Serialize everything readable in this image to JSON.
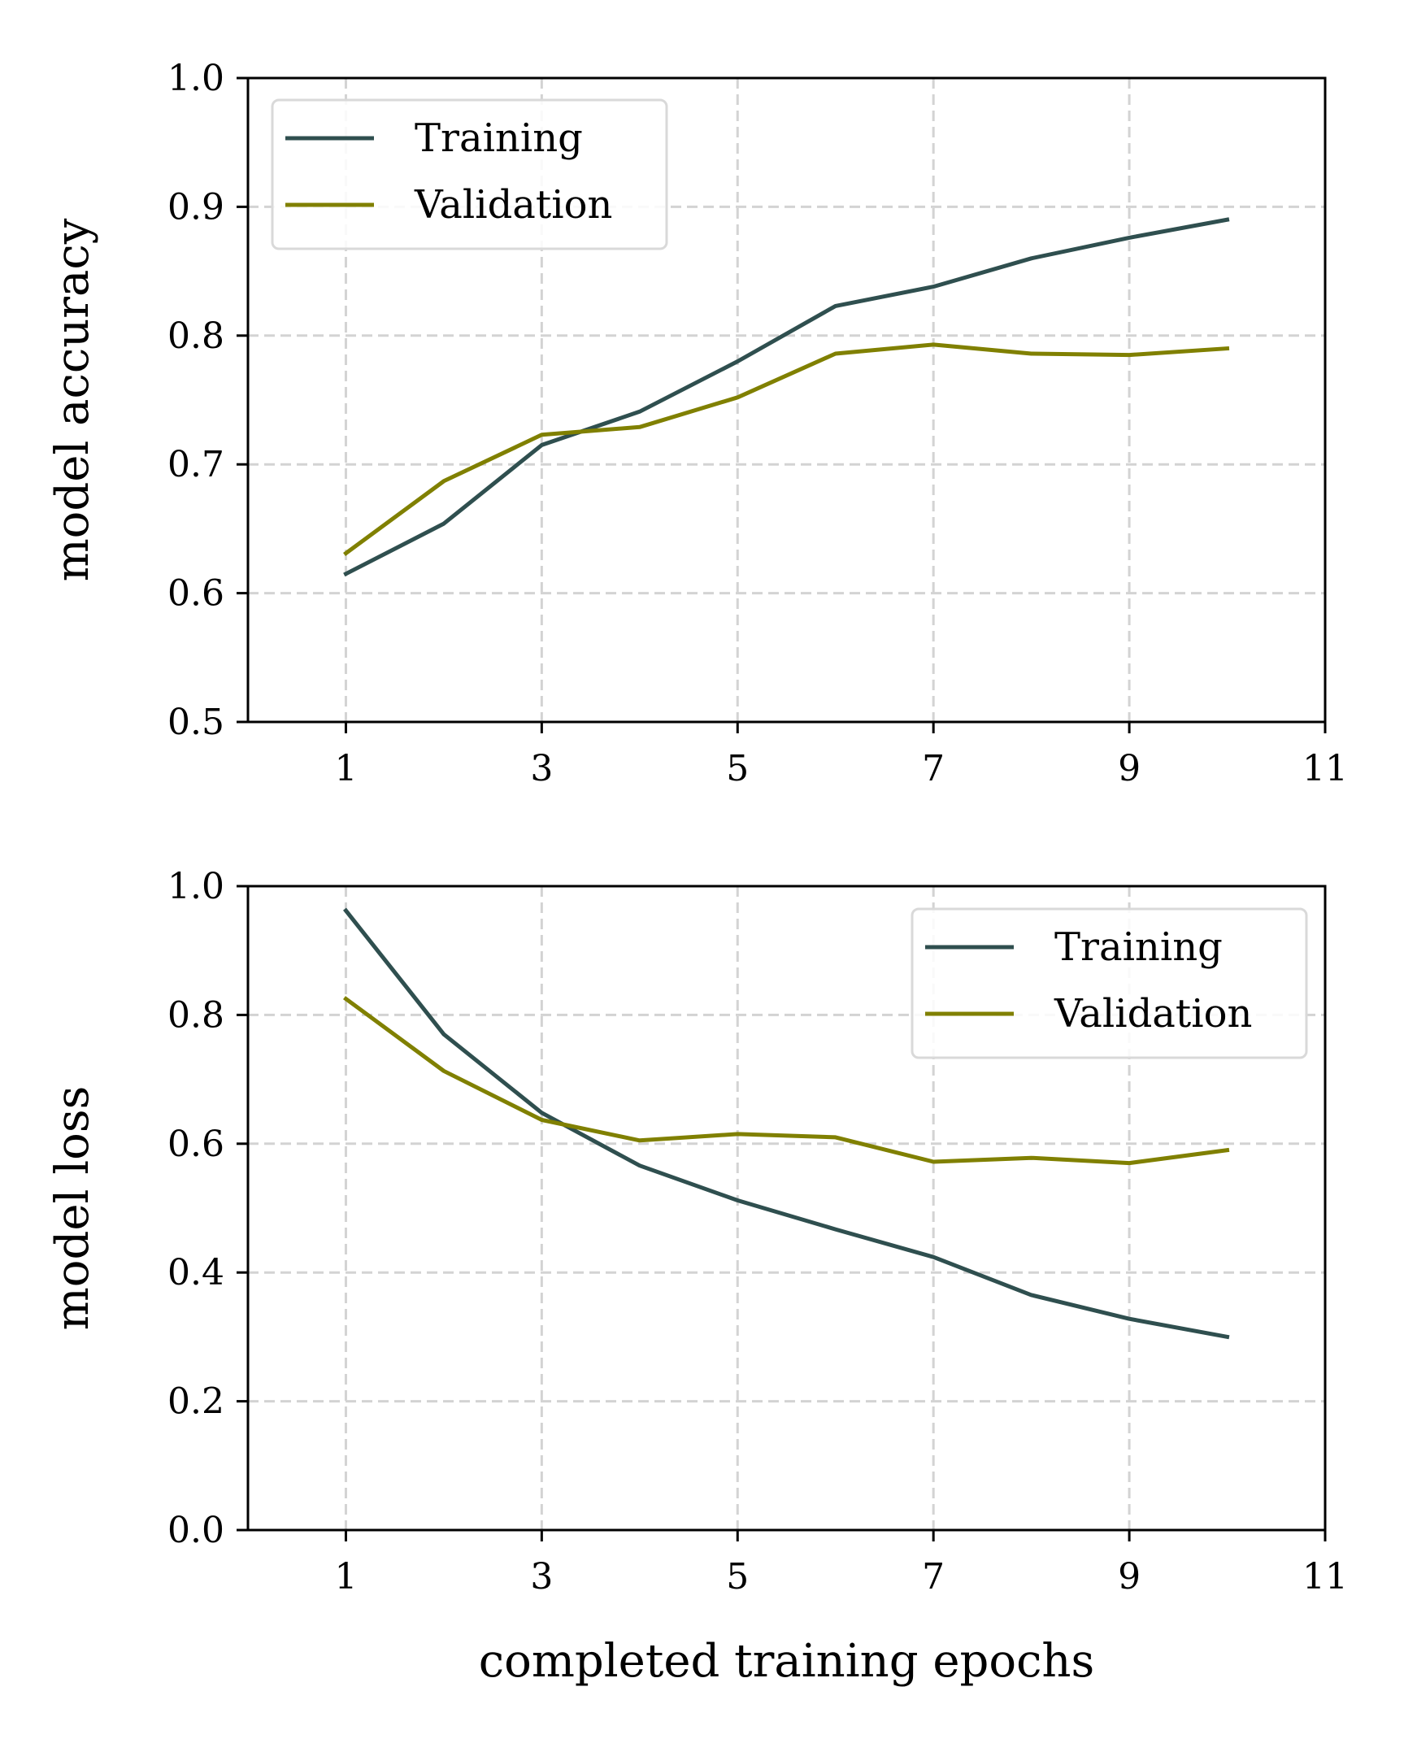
{
  "chart_data": [
    {
      "type": "line",
      "x": [
        1,
        2,
        3,
        4,
        5,
        6,
        7,
        8,
        9,
        10
      ],
      "series": [
        {
          "name": "Training",
          "color": "#2f4f4f",
          "values": [
            0.615,
            0.654,
            0.715,
            0.741,
            0.78,
            0.823,
            0.838,
            0.86,
            0.876,
            0.89
          ]
        },
        {
          "name": "Validation",
          "color": "#808000",
          "values": [
            0.631,
            0.687,
            0.723,
            0.729,
            0.752,
            0.786,
            0.793,
            0.786,
            0.785,
            0.79
          ]
        }
      ],
      "title": "",
      "xlabel": "",
      "ylabel": "model accuracy",
      "xlim": [
        0,
        11
      ],
      "ylim": [
        0.5,
        1.0
      ],
      "xticks": [
        1,
        3,
        5,
        7,
        9,
        11
      ],
      "xtick_labels": [
        "1",
        "3",
        "5",
        "7",
        "9",
        "11"
      ],
      "yticks": [
        0.5,
        0.6,
        0.7,
        0.8,
        0.9,
        1.0
      ],
      "ytick_labels": [
        "0.5",
        "0.6",
        "0.7",
        "0.8",
        "0.9",
        "1.0"
      ],
      "grid": true,
      "grid_style": "dashed",
      "legend_position": "upper-left"
    },
    {
      "type": "line",
      "x": [
        1,
        2,
        3,
        4,
        5,
        6,
        7,
        8,
        9,
        10
      ],
      "series": [
        {
          "name": "Training",
          "color": "#2f4f4f",
          "values": [
            0.962,
            0.77,
            0.648,
            0.566,
            0.512,
            0.467,
            0.424,
            0.365,
            0.328,
            0.3
          ]
        },
        {
          "name": "Validation",
          "color": "#808000",
          "values": [
            0.825,
            0.713,
            0.637,
            0.605,
            0.615,
            0.61,
            0.572,
            0.578,
            0.57,
            0.59
          ]
        }
      ],
      "title": "",
      "xlabel": "completed training epochs",
      "ylabel": "model loss",
      "xlim": [
        0,
        11
      ],
      "ylim": [
        0.0,
        1.0
      ],
      "xticks": [
        1,
        3,
        5,
        7,
        9,
        11
      ],
      "xtick_labels": [
        "1",
        "3",
        "5",
        "7",
        "9",
        "11"
      ],
      "yticks": [
        0.0,
        0.2,
        0.4,
        0.6,
        0.8,
        1.0
      ],
      "ytick_labels": [
        "0.0",
        "0.2",
        "0.4",
        "0.6",
        "0.8",
        "1.0"
      ],
      "grid": true,
      "grid_style": "dashed",
      "legend_position": "upper-right"
    }
  ]
}
